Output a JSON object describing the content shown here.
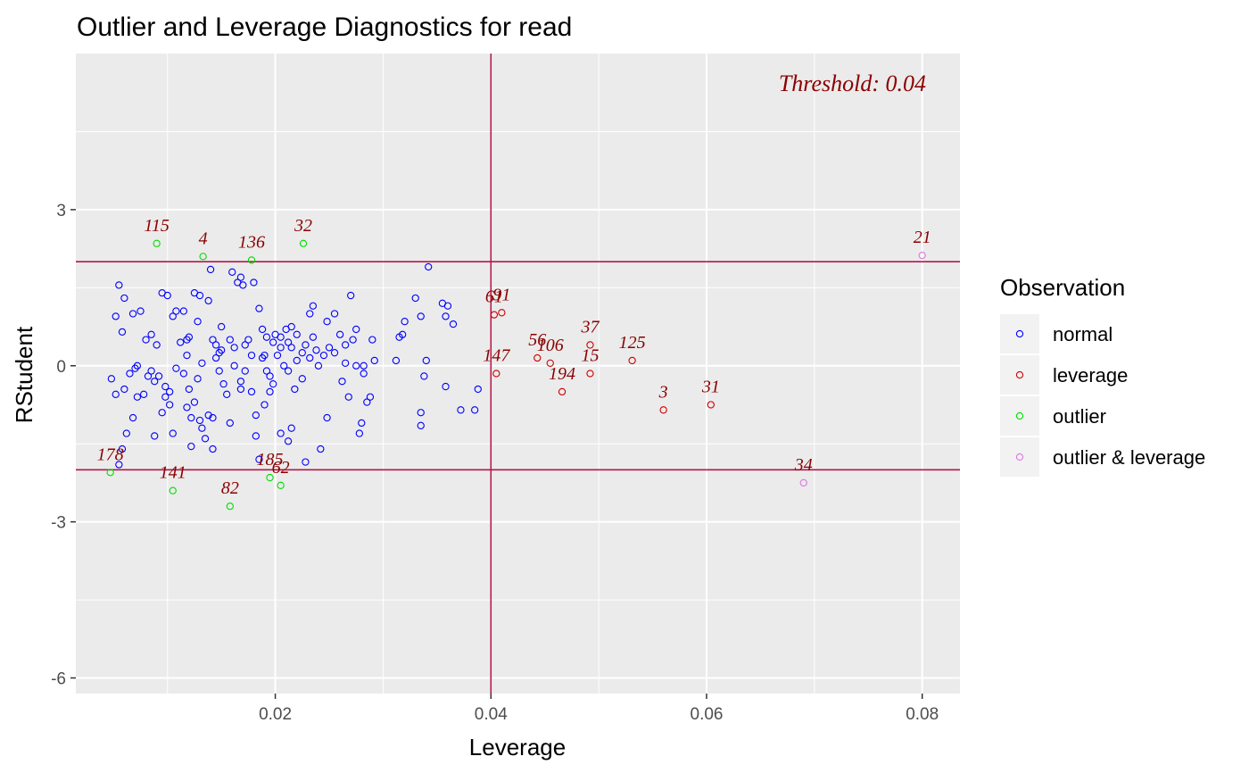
{
  "chart_data": {
    "type": "scatter",
    "title": "Outlier and Leverage Diagnostics for read",
    "xlabel": "Leverage",
    "ylabel": "RStudent",
    "xlim": [
      0.0015,
      0.0835
    ],
    "ylim": [
      -6.3,
      6.0
    ],
    "xticks": [
      0.02,
      0.04,
      0.06,
      0.08
    ],
    "xtick_labels": [
      "0.02",
      "0.04",
      "0.06",
      "0.08"
    ],
    "yticks": [
      -6,
      -3,
      0,
      3
    ],
    "ytick_labels": [
      "-6",
      "-3",
      "0",
      "3"
    ],
    "grid": true,
    "threshold_x": 0.04,
    "threshold_y": [
      2,
      -2
    ],
    "annotation": "Threshold: 0.04",
    "legend": {
      "title": "Observation",
      "position": "right",
      "entries": [
        {
          "label": "normal",
          "color": "#0000ff"
        },
        {
          "label": "leverage",
          "color": "#cc0000"
        },
        {
          "label": "outlier",
          "color": "#00dd00"
        },
        {
          "label": "outlier & leverage",
          "color": "#dd77dd"
        }
      ]
    },
    "colors": {
      "panel_bg": "#ebebeb",
      "grid": "#ffffff",
      "ref_line": "#b5174a",
      "label_text": "#8b0000"
    },
    "series": [
      {
        "name": "normal",
        "points": [
          [
            0.0055,
            1.55
          ],
          [
            0.0058,
            0.65
          ],
          [
            0.006,
            1.3
          ],
          [
            0.0052,
            0.95
          ],
          [
            0.0068,
            1.0
          ],
          [
            0.0075,
            1.05
          ],
          [
            0.0065,
            -0.15
          ],
          [
            0.007,
            -0.05
          ],
          [
            0.006,
            -0.45
          ],
          [
            0.0052,
            -0.55
          ],
          [
            0.0048,
            -0.25
          ],
          [
            0.0062,
            -1.3
          ],
          [
            0.0072,
            -0.6
          ],
          [
            0.0068,
            -1.0
          ],
          [
            0.0055,
            -1.9
          ],
          [
            0.0058,
            -1.6
          ],
          [
            0.008,
            0.5
          ],
          [
            0.0085,
            0.6
          ],
          [
            0.009,
            0.4
          ],
          [
            0.0095,
            1.4
          ],
          [
            0.01,
            1.35
          ],
          [
            0.0105,
            0.95
          ],
          [
            0.0108,
            1.05
          ],
          [
            0.0085,
            -0.1
          ],
          [
            0.0088,
            -0.3
          ],
          [
            0.0092,
            -0.2
          ],
          [
            0.0098,
            -0.4
          ],
          [
            0.0102,
            -0.5
          ],
          [
            0.0095,
            -0.9
          ],
          [
            0.0105,
            -1.3
          ],
          [
            0.0088,
            -1.35
          ],
          [
            0.0112,
            0.45
          ],
          [
            0.0118,
            0.5
          ],
          [
            0.012,
            0.55
          ],
          [
            0.0125,
            1.4
          ],
          [
            0.013,
            1.35
          ],
          [
            0.0128,
            0.85
          ],
          [
            0.0115,
            -0.15
          ],
          [
            0.012,
            -0.45
          ],
          [
            0.0125,
            -0.7
          ],
          [
            0.013,
            -1.05
          ],
          [
            0.0132,
            -1.2
          ],
          [
            0.0135,
            -1.4
          ],
          [
            0.0122,
            -1.55
          ],
          [
            0.014,
            1.85
          ],
          [
            0.0138,
            1.25
          ],
          [
            0.0142,
            0.5
          ],
          [
            0.0145,
            0.4
          ],
          [
            0.015,
            0.3
          ],
          [
            0.0148,
            -0.1
          ],
          [
            0.0152,
            -0.35
          ],
          [
            0.0155,
            -0.55
          ],
          [
            0.0158,
            -1.1
          ],
          [
            0.0142,
            -1.6
          ],
          [
            0.016,
            1.8
          ],
          [
            0.0165,
            1.6
          ],
          [
            0.017,
            1.55
          ],
          [
            0.0168,
            1.7
          ],
          [
            0.0172,
            0.4
          ],
          [
            0.0175,
            0.5
          ],
          [
            0.0162,
            0.0
          ],
          [
            0.0168,
            -0.3
          ],
          [
            0.0178,
            -0.5
          ],
          [
            0.0182,
            -1.35
          ],
          [
            0.0185,
            -1.8
          ],
          [
            0.018,
            1.6
          ],
          [
            0.0185,
            1.1
          ],
          [
            0.0188,
            0.7
          ],
          [
            0.019,
            0.2
          ],
          [
            0.0192,
            -0.1
          ],
          [
            0.0195,
            -0.5
          ],
          [
            0.019,
            -0.75
          ],
          [
            0.02,
            0.6
          ],
          [
            0.0205,
            0.55
          ],
          [
            0.021,
            0.7
          ],
          [
            0.0215,
            0.75
          ],
          [
            0.0202,
            0.2
          ],
          [
            0.0208,
            0.0
          ],
          [
            0.0212,
            -0.1
          ],
          [
            0.0218,
            -0.45
          ],
          [
            0.0205,
            -1.3
          ],
          [
            0.0212,
            -1.45
          ],
          [
            0.0215,
            -1.2
          ],
          [
            0.022,
            0.1
          ],
          [
            0.0225,
            0.25
          ],
          [
            0.0228,
            0.4
          ],
          [
            0.0232,
            1.0
          ],
          [
            0.0235,
            1.15
          ],
          [
            0.0228,
            -1.85
          ],
          [
            0.024,
            0.0
          ],
          [
            0.0245,
            0.2
          ],
          [
            0.025,
            0.35
          ],
          [
            0.0248,
            0.85
          ],
          [
            0.0255,
            1.0
          ],
          [
            0.0242,
            -1.6
          ],
          [
            0.0248,
            -1.0
          ],
          [
            0.026,
            0.6
          ],
          [
            0.0265,
            0.4
          ],
          [
            0.0262,
            -0.3
          ],
          [
            0.0268,
            -0.6
          ],
          [
            0.027,
            1.35
          ],
          [
            0.0275,
            0.7
          ],
          [
            0.0272,
            0.5
          ],
          [
            0.0278,
            -1.3
          ],
          [
            0.028,
            -1.1
          ],
          [
            0.0282,
            0.0
          ],
          [
            0.0285,
            -0.7
          ],
          [
            0.0288,
            -0.6
          ],
          [
            0.029,
            0.5
          ],
          [
            0.0292,
            0.1
          ],
          [
            0.0315,
            0.55
          ],
          [
            0.0318,
            0.6
          ],
          [
            0.032,
            0.85
          ],
          [
            0.0312,
            0.1
          ],
          [
            0.033,
            1.3
          ],
          [
            0.0335,
            0.95
          ],
          [
            0.0338,
            -0.2
          ],
          [
            0.0335,
            -0.9
          ],
          [
            0.0335,
            -1.15
          ],
          [
            0.034,
            0.1
          ],
          [
            0.0342,
            1.9
          ],
          [
            0.0355,
            1.2
          ],
          [
            0.036,
            1.15
          ],
          [
            0.0358,
            0.95
          ],
          [
            0.0365,
            0.8
          ],
          [
            0.0358,
            -0.4
          ],
          [
            0.0372,
            -0.85
          ],
          [
            0.0385,
            -0.85
          ],
          [
            0.0388,
            -0.45
          ],
          [
            0.0072,
            0.0
          ],
          [
            0.0115,
            1.05
          ],
          [
            0.0145,
            0.15
          ],
          [
            0.0198,
            0.45
          ],
          [
            0.022,
            0.6
          ],
          [
            0.0238,
            0.3
          ],
          [
            0.0178,
            0.2
          ],
          [
            0.0132,
            0.05
          ],
          [
            0.015,
            0.75
          ],
          [
            0.0162,
            0.35
          ],
          [
            0.0195,
            -0.2
          ],
          [
            0.0225,
            -0.25
          ],
          [
            0.0275,
            0.0
          ],
          [
            0.0108,
            -0.05
          ],
          [
            0.0128,
            -0.25
          ],
          [
            0.0158,
            0.5
          ],
          [
            0.0188,
            0.15
          ],
          [
            0.0205,
            0.35
          ],
          [
            0.0078,
            -0.55
          ],
          [
            0.0098,
            -0.6
          ],
          [
            0.0118,
            -0.8
          ],
          [
            0.0138,
            -0.95
          ],
          [
            0.0168,
            -0.45
          ],
          [
            0.0198,
            -0.35
          ],
          [
            0.0215,
            0.35
          ],
          [
            0.0235,
            0.55
          ],
          [
            0.0255,
            0.25
          ],
          [
            0.0265,
            0.05
          ],
          [
            0.0282,
            -0.15
          ],
          [
            0.0182,
            -0.95
          ],
          [
            0.0142,
            -1.0
          ],
          [
            0.0122,
            -1.0
          ],
          [
            0.0102,
            -0.75
          ],
          [
            0.0082,
            -0.2
          ],
          [
            0.0118,
            0.2
          ],
          [
            0.0148,
            0.25
          ],
          [
            0.0172,
            -0.1
          ],
          [
            0.0192,
            0.55
          ],
          [
            0.0212,
            0.45
          ],
          [
            0.0232,
            0.15
          ]
        ]
      },
      {
        "name": "leverage",
        "points": [
          [
            0.0403,
            0.98
          ],
          [
            0.041,
            1.02
          ],
          [
            0.0405,
            -0.15
          ],
          [
            0.0443,
            0.15
          ],
          [
            0.0455,
            0.05
          ],
          [
            0.0466,
            -0.5
          ],
          [
            0.0492,
            0.4
          ],
          [
            0.0492,
            -0.15
          ],
          [
            0.0531,
            0.1
          ],
          [
            0.056,
            -0.85
          ],
          [
            0.0604,
            -0.75
          ]
        ]
      },
      {
        "name": "outlier",
        "points": [
          [
            0.009,
            2.35
          ],
          [
            0.0133,
            2.1
          ],
          [
            0.0178,
            2.03
          ],
          [
            0.0226,
            2.35
          ],
          [
            0.0047,
            -2.05
          ],
          [
            0.0105,
            -2.4
          ],
          [
            0.0195,
            -2.15
          ],
          [
            0.0205,
            -2.3
          ],
          [
            0.0158,
            -2.7
          ]
        ]
      },
      {
        "name": "outlier & leverage",
        "points": [
          [
            0.08,
            2.12
          ],
          [
            0.069,
            -2.25
          ]
        ]
      }
    ],
    "point_labels": [
      {
        "text": "115",
        "x": 0.009,
        "y": 2.35
      },
      {
        "text": "4",
        "x": 0.0133,
        "y": 2.1
      },
      {
        "text": "136",
        "x": 0.0178,
        "y": 2.03
      },
      {
        "text": "32",
        "x": 0.0226,
        "y": 2.35
      },
      {
        "text": "21",
        "x": 0.08,
        "y": 2.12
      },
      {
        "text": "61",
        "x": 0.0403,
        "y": 0.98
      },
      {
        "text": "91",
        "x": 0.041,
        "y": 1.02
      },
      {
        "text": "56",
        "x": 0.0443,
        "y": 0.15
      },
      {
        "text": "106",
        "x": 0.0455,
        "y": 0.05
      },
      {
        "text": "37",
        "x": 0.0492,
        "y": 0.4
      },
      {
        "text": "125",
        "x": 0.0531,
        "y": 0.1
      },
      {
        "text": "147",
        "x": 0.0405,
        "y": -0.15
      },
      {
        "text": "15",
        "x": 0.0492,
        "y": -0.15
      },
      {
        "text": "194",
        "x": 0.0466,
        "y": -0.5
      },
      {
        "text": "3",
        "x": 0.056,
        "y": -0.85
      },
      {
        "text": "31",
        "x": 0.0604,
        "y": -0.75
      },
      {
        "text": "178",
        "x": 0.0047,
        "y": -2.05
      },
      {
        "text": "141",
        "x": 0.0105,
        "y": -2.4
      },
      {
        "text": "185",
        "x": 0.0195,
        "y": -2.15
      },
      {
        "text": "62",
        "x": 0.0205,
        "y": -2.3
      },
      {
        "text": "82",
        "x": 0.0158,
        "y": -2.7
      },
      {
        "text": "34",
        "x": 0.069,
        "y": -2.25
      }
    ]
  }
}
